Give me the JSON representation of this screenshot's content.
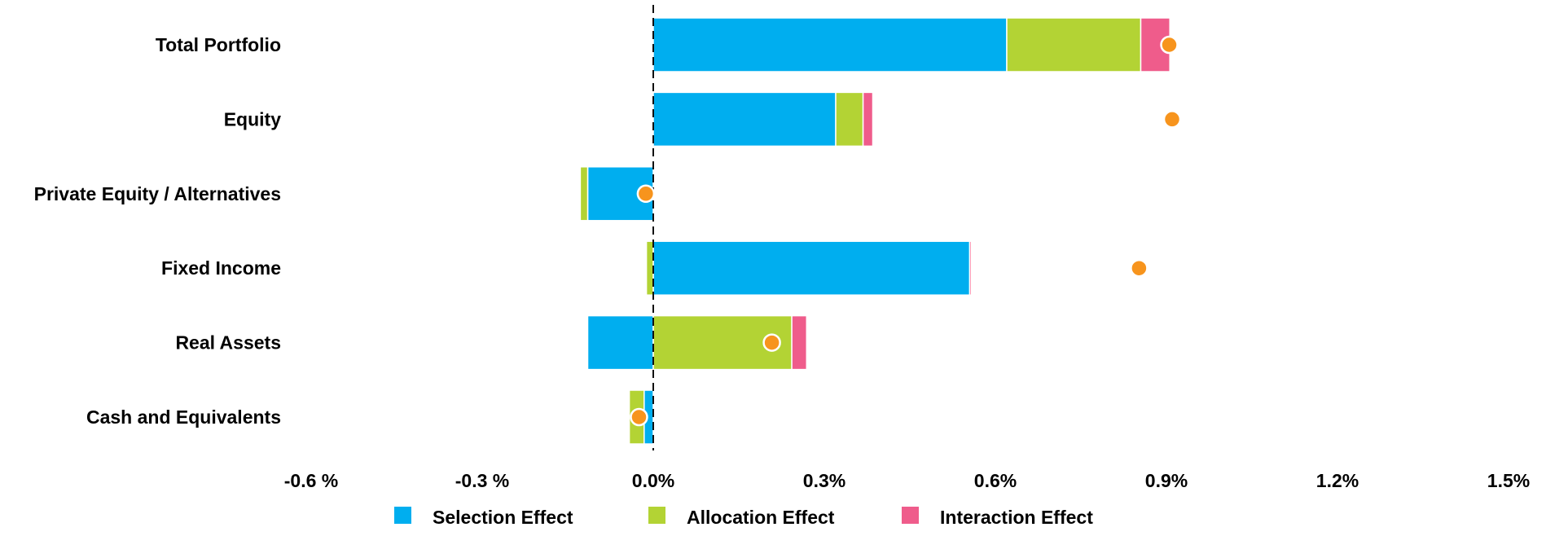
{
  "chart_data": {
    "type": "bar",
    "orientation": "horizontal",
    "stacked": true,
    "categories": [
      "Total Portfolio",
      "Equity",
      "Private Equity / Alternatives",
      "Fixed Income",
      "Real Assets",
      "Cash and Equivalents"
    ],
    "series": [
      {
        "name": "Selection Effect",
        "color": "#00AEEF",
        "values": [
          0.62,
          0.32,
          -0.115,
          0.555,
          -0.115,
          -0.016
        ]
      },
      {
        "name": "Allocation Effect",
        "color": "#B3D334",
        "values": [
          0.235,
          0.048,
          -0.013,
          -0.012,
          0.243,
          -0.026
        ]
      },
      {
        "name": "Interaction Effect",
        "color": "#EF5C8B",
        "values": [
          0.051,
          0.017,
          0.0,
          0.003,
          0.026,
          0.0
        ]
      }
    ],
    "total_marker": {
      "color": "#F7941D",
      "values": [
        0.905,
        0.91,
        -0.013,
        0.852,
        0.208,
        -0.025
      ]
    },
    "xlim": [
      -0.6,
      1.5
    ],
    "tick_values": [
      -0.6,
      -0.3,
      0.0,
      0.3,
      0.6,
      0.9,
      1.2,
      1.5
    ],
    "tick_labels": [
      "-0.6 %",
      "-0.3 %",
      "0.0%",
      "0.3%",
      "0.6%",
      "0.9%",
      "1.2%",
      "1.5%"
    ],
    "zero_line": "dashed",
    "grid": false,
    "legend_position": "bottom",
    "title": "",
    "xlabel": "",
    "ylabel": ""
  }
}
